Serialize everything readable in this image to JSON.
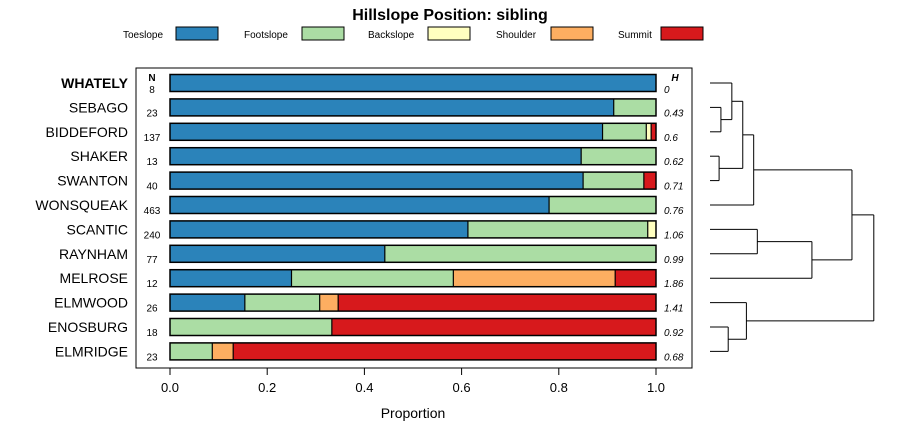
{
  "chart_data": {
    "type": "bar",
    "orientation": "horizontal-stacked",
    "title": "Hillslope Position: sibling",
    "xlabel": "Proportion",
    "ylabel": "",
    "xlim": [
      0,
      1
    ],
    "x_ticks": [
      "0.0",
      "0.2",
      "0.4",
      "0.6",
      "0.8",
      "1.0"
    ],
    "x_tick_values": [
      0,
      0.2,
      0.4,
      0.6,
      0.8,
      1.0
    ],
    "legend": [
      {
        "name": "Toeslope",
        "color": "#2b83ba"
      },
      {
        "name": "Footslope",
        "color": "#abdda4"
      },
      {
        "name": "Backslope",
        "color": "#ffffbf"
      },
      {
        "name": "Shoulder",
        "color": "#fdae61"
      },
      {
        "name": "Summit",
        "color": "#d7191c"
      }
    ],
    "n_header": "N",
    "h_header": "H",
    "categories": [
      "WHATELY",
      "SEBAGO",
      "BIDDEFORD",
      "SHAKER",
      "SWANTON",
      "WONSQUEAK",
      "SCANTIC",
      "RAYNHAM",
      "MELROSE",
      "ELMWOOD",
      "ENOSBURG",
      "ELMRIDGE"
    ],
    "highlight": "WHATELY",
    "n": [
      "8",
      "23",
      "137",
      "13",
      "40",
      "463",
      "240",
      "77",
      "12",
      "26",
      "18",
      "23"
    ],
    "h": [
      "0",
      "0.43",
      "0.6",
      "0.62",
      "0.71",
      "0.76",
      "1.06",
      "0.99",
      "1.86",
      "1.41",
      "0.92",
      "0.68"
    ],
    "series": [
      {
        "name": "Toeslope",
        "values": [
          1.0,
          0.913,
          0.89,
          0.846,
          0.85,
          0.78,
          0.613,
          0.442,
          0.25,
          0.154,
          0.0,
          0.0
        ]
      },
      {
        "name": "Footslope",
        "values": [
          0.0,
          0.087,
          0.09,
          0.154,
          0.125,
          0.22,
          0.37,
          0.558,
          0.333,
          0.154,
          0.333,
          0.087
        ]
      },
      {
        "name": "Backslope",
        "values": [
          0.0,
          0.0,
          0.01,
          0.0,
          0.0,
          0.0,
          0.017,
          0.0,
          0.0,
          0.0,
          0.0,
          0.0
        ]
      },
      {
        "name": "Shoulder",
        "values": [
          0.0,
          0.0,
          0.0,
          0.0,
          0.0,
          0.0,
          0.0,
          0.0,
          0.333,
          0.038,
          0.0,
          0.043
        ]
      },
      {
        "name": "Summit",
        "values": [
          0.0,
          0.0,
          0.01,
          0.0,
          0.025,
          0.0,
          0.0,
          0.0,
          0.083,
          0.654,
          0.667,
          0.87
        ]
      }
    ],
    "dendrogram": {
      "description": "hierarchical clustering of the 12 rows",
      "merges": [
        {
          "a": "SHAKER",
          "b": "SWANTON",
          "height": 0.05
        },
        {
          "a": "SEBAGO",
          "b": "BIDDEFORD",
          "height": 0.06
        },
        {
          "a": "ENOSBURG",
          "b": "ELMRIDGE",
          "height": 0.1
        },
        {
          "a": "WHATELY",
          "b": "SEBAGO+BIDDEFORD",
          "height": 0.12
        },
        {
          "a": "WHATELY+SEBAGO+BIDDEFORD",
          "b": "SHAKER+SWANTON",
          "height": 0.18
        },
        {
          "a": "ELMWOOD",
          "b": "ENOSBURG+ELMRIDGE",
          "height": 0.2
        },
        {
          "a": "previous",
          "b": "WONSQUEAK",
          "height": 0.24
        },
        {
          "a": "SCANTIC",
          "b": "RAYNHAM",
          "height": 0.26
        },
        {
          "a": "SCANTIC+RAYNHAM",
          "b": "MELROSE",
          "height": 0.56
        },
        {
          "a": "top-group",
          "b": "SCANTIC+RAYNHAM+MELROSE",
          "height": 0.78
        },
        {
          "a": "all-others",
          "b": "ELMWOOD+ENOSBURG+ELMRIDGE",
          "height": 0.9
        }
      ]
    }
  }
}
